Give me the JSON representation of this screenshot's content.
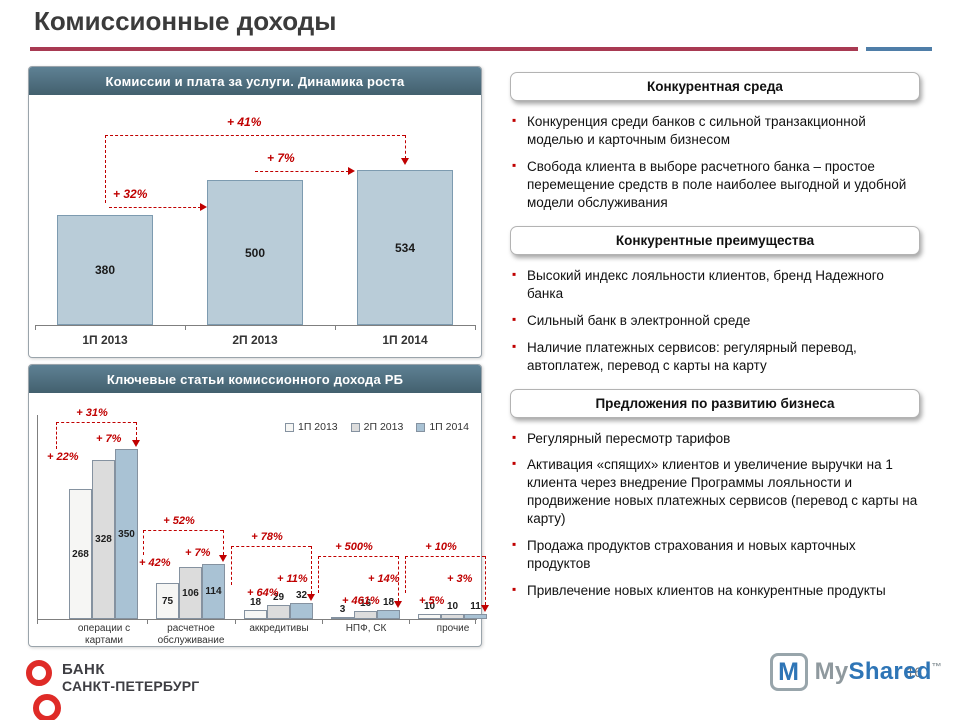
{
  "slide": {
    "title": "Комиссионные доходы",
    "page_number": "16"
  },
  "colors": {
    "divider_red": "#a83a52",
    "divider_blue": "#4f7ea8",
    "annotation_red": "#c00000",
    "panel_header": "#4c6b7c",
    "bullet_marker": "#c00000"
  },
  "chart_data": [
    {
      "type": "bar",
      "title": "Комиссии и плата за услуги. Динамика роста",
      "categories": [
        "1П 2013",
        "2П 2013",
        "1П 2014"
      ],
      "values": [
        380,
        500,
        534
      ],
      "bar_color": "#b9ccd8",
      "bar_border": "#7d9bb0",
      "grid": false,
      "legend_position": "none",
      "annotations": [
        {
          "label": "+ 32%",
          "from": "1П 2013",
          "to": "2П 2013"
        },
        {
          "label": "+ 7%",
          "from": "2П 2013",
          "to": "1П 2014"
        },
        {
          "label": "+ 41%",
          "from": "1П 2013",
          "to": "1П 2014"
        }
      ]
    },
    {
      "type": "bar",
      "title": "Ключевые статьи комиссионного дохода РБ",
      "categories": [
        "операции с\nкартами",
        "расчетное\nобслуживание",
        "аккредитивы",
        "НПФ, СК",
        "прочие"
      ],
      "series": [
        {
          "name": "1П 2013",
          "color": "#f6f6f4",
          "values": [
            268,
            75,
            18,
            3,
            10
          ]
        },
        {
          "name": "2П 2013",
          "color": "#dcdcdc",
          "values": [
            328,
            106,
            29,
            16,
            10
          ]
        },
        {
          "name": "1П 2014",
          "color": "#a9c2d4",
          "values": [
            350,
            114,
            32,
            18,
            11
          ]
        }
      ],
      "grid": false,
      "legend_position": "top-right",
      "annotations": [
        {
          "category": "операции с картами",
          "total": "+ 31%",
          "step1": "+ 22%",
          "step2": "+ 7%"
        },
        {
          "category": "расчетное обслуживание",
          "total": "+ 52%",
          "step1": "+ 42%",
          "step2": "+ 7%"
        },
        {
          "category": "аккредитивы",
          "total": "+ 78%",
          "step1": "+ 64%",
          "step2": "+ 11%"
        },
        {
          "category": "НПФ, СК",
          "total": "+ 500%",
          "step1": "+ 461%",
          "step2": "+ 14%"
        },
        {
          "category": "прочие",
          "total": "+ 10%",
          "step1": "+ 5%",
          "step2": "+ 3%"
        }
      ]
    }
  ],
  "sections": [
    {
      "header": "Конкурентная среда",
      "bullets": [
        "Конкуренция среди банков с сильной транзакционной моделью и карточным бизнесом",
        "Свобода клиента в выборе расчетного банка – простое перемещение средств в поле наиболее выгодной и удобной модели обслуживания"
      ]
    },
    {
      "header": "Конкурентные преимущества",
      "bullets": [
        "Высокий индекс лояльности клиентов, бренд Надежного банка",
        "Сильный банк в электронной среде",
        "Наличие платежных сервисов: регулярный перевод, автоплатеж, перевод с карты на карту"
      ]
    },
    {
      "header": "Предложения по развитию бизнеса",
      "bullets": [
        "Регулярный пересмотр тарифов",
        "Активация «спящих» клиентов и увеличение выручки на 1 клиента через внедрение Программы лояльности и продвижение новых платежных сервисов (перевод с карты на карту)",
        "Продажа продуктов страхования и новых карточных продуктов",
        "Привлечение новых клиентов на конкурентные продукты"
      ]
    }
  ],
  "footer": {
    "bank_line1": "БАНК",
    "bank_line2": "САНКТ-ПЕТЕРБУРГ",
    "watermark_icon": "M",
    "watermark_my": "My",
    "watermark_shared": "Shared",
    "watermark_tm": "™"
  }
}
